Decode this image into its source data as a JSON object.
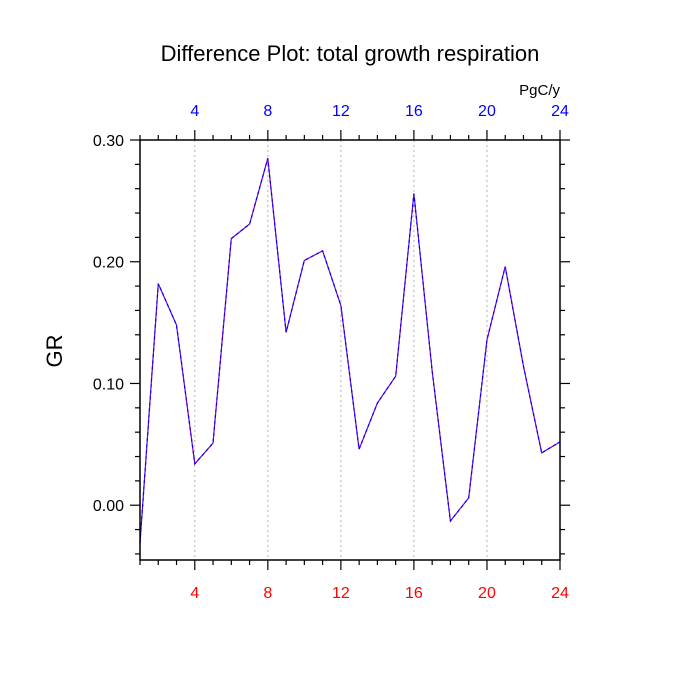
{
  "chart_data": {
    "type": "line",
    "title": "Difference Plot: total growth respiration",
    "units_label": "PgC/y",
    "ylabel": "GR",
    "xlabel": "",
    "xlim": [
      1,
      24
    ],
    "ylim": [
      -0.045,
      0.3
    ],
    "yticks": [
      0.0,
      0.1,
      0.2,
      0.3
    ],
    "ytick_labels": [
      "0.00",
      "0.10",
      "0.20",
      "0.30"
    ],
    "xticks": [
      4,
      8,
      12,
      16,
      20,
      24
    ],
    "xtick_labels": [
      "4",
      "8",
      "12",
      "16",
      "20",
      "24"
    ],
    "vertical_gridlines": true,
    "bottom_tick_color": "#ff0000",
    "top_tick_color": "#0000ff",
    "series": [
      {
        "line_color": "#7b00c8",
        "dash_color": "#0000ff",
        "x": [
          1,
          2,
          3,
          4,
          5,
          6,
          7,
          8,
          9,
          10,
          11,
          12,
          13,
          14,
          15,
          16,
          17,
          18,
          19,
          20,
          21,
          22,
          23,
          24
        ],
        "values": [
          -0.031,
          0.182,
          0.148,
          0.034,
          0.051,
          0.219,
          0.231,
          0.285,
          0.142,
          0.201,
          0.209,
          0.164,
          0.046,
          0.084,
          0.106,
          0.256,
          0.11,
          -0.013,
          0.006,
          0.136,
          0.196,
          0.114,
          0.043,
          0.052
        ]
      }
    ]
  }
}
